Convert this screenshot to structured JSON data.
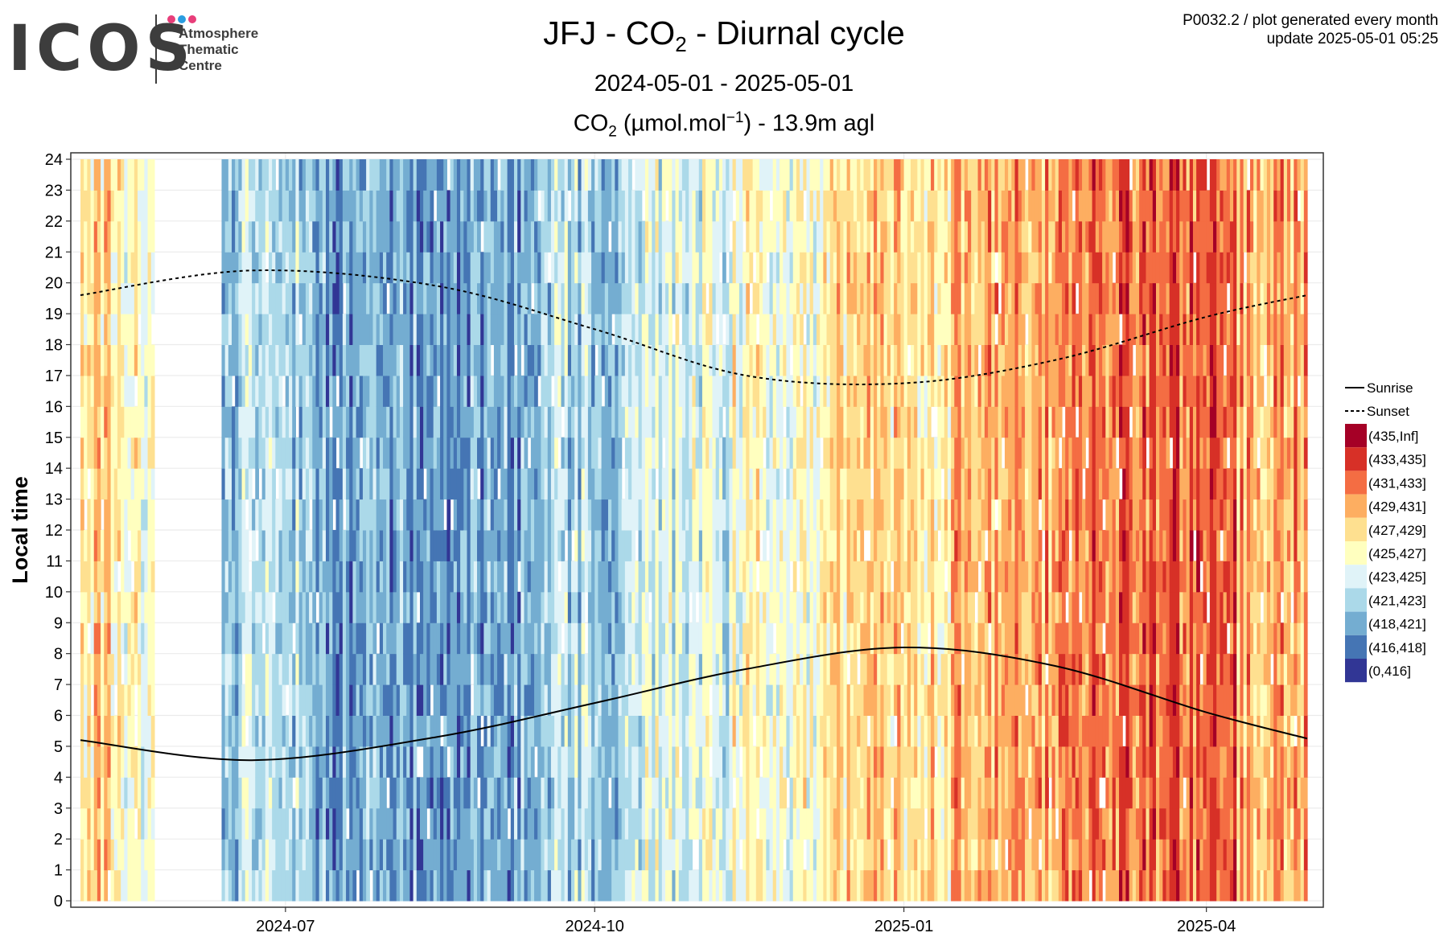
{
  "logo": {
    "word": "ICOS",
    "lines": [
      "Atmosphere",
      "Thematic",
      "Centre"
    ],
    "dot_colors": [
      "#e83e7a",
      "#2a9de0",
      "#e83e7a"
    ]
  },
  "header": {
    "title_parts": [
      "JFJ - CO",
      "2",
      " - Diurnal cycle"
    ],
    "period": "2024-05-01 - 2025-05-01",
    "variable_parts": [
      "CO",
      "2",
      " (µmol.mol",
      "−1",
      ") - 13.9m agl"
    ]
  },
  "info": {
    "line1": "P0032.2 / plot generated every month",
    "line2": "update  2025-05-01 05:25"
  },
  "chart_data": {
    "type": "heatmap",
    "ylabel": "Local time",
    "x_range": [
      "2024-05-01",
      "2025-05-01"
    ],
    "y_range": [
      0,
      24
    ],
    "x_ticks": [
      {
        "date": "2024-07-01",
        "label": "2024-07"
      },
      {
        "date": "2024-10-01",
        "label": "2024-10"
      },
      {
        "date": "2025-01-01",
        "label": "2025-01"
      },
      {
        "date": "2025-04-01",
        "label": "2025-04"
      }
    ],
    "y_ticks": [
      0,
      1,
      2,
      3,
      4,
      5,
      6,
      7,
      8,
      9,
      10,
      11,
      12,
      13,
      14,
      15,
      16,
      17,
      18,
      19,
      20,
      21,
      22,
      23,
      24
    ],
    "grid": true,
    "legend_position": "right",
    "bins": [
      {
        "label": "(435,Inf]",
        "color": "#a50026"
      },
      {
        "label": "(433,435]",
        "color": "#d73027"
      },
      {
        "label": "(431,433]",
        "color": "#f46d43"
      },
      {
        "label": "(429,431]",
        "color": "#fdae61"
      },
      {
        "label": "(427,429]",
        "color": "#fee090"
      },
      {
        "label": "(425,427]",
        "color": "#ffffbf"
      },
      {
        "label": "(423,425]",
        "color": "#e0f3f8"
      },
      {
        "label": "(421,423]",
        "color": "#abd9e9"
      },
      {
        "label": "(418,421]",
        "color": "#74add1"
      },
      {
        "label": "(416,418]",
        "color": "#4575b4"
      },
      {
        "label": "(0,416]",
        "color": "#313695"
      }
    ],
    "missing_periods": [
      {
        "from": "2024-05-23",
        "to": "2024-06-12"
      }
    ],
    "daily_bin_profile": [
      {
        "from": "2024-05-01",
        "to": "2024-05-10",
        "dominant": "(427,429]"
      },
      {
        "from": "2024-05-10",
        "to": "2024-05-23",
        "dominant": "(425,427]"
      },
      {
        "from": "2024-06-12",
        "to": "2024-07-10",
        "dominant": "(421,423]"
      },
      {
        "from": "2024-07-10",
        "to": "2024-09-15",
        "dominant": "(418,421]"
      },
      {
        "from": "2024-09-15",
        "to": "2024-10-15",
        "dominant": "(421,423]"
      },
      {
        "from": "2024-10-15",
        "to": "2024-11-10",
        "dominant": "(423,425]"
      },
      {
        "from": "2024-11-10",
        "to": "2024-12-10",
        "dominant": "(425,427]"
      },
      {
        "from": "2024-12-10",
        "to": "2025-01-15",
        "dominant": "(427,429]"
      },
      {
        "from": "2025-01-15",
        "to": "2025-02-20",
        "dominant": "(429,431]"
      },
      {
        "from": "2025-02-20",
        "to": "2025-04-10",
        "dominant": "(431,433]"
      },
      {
        "from": "2025-04-10",
        "to": "2025-05-01",
        "dominant": "(429,431]"
      }
    ],
    "series": [
      {
        "name": "Sunrise",
        "line": "solid",
        "x": [
          "2024-05-01",
          "2024-06-21",
          "2024-08-15",
          "2024-10-01",
          "2024-11-15",
          "2025-01-01",
          "2025-02-15",
          "2025-04-01",
          "2025-05-01"
        ],
        "y": [
          5.2,
          4.55,
          5.3,
          6.4,
          7.5,
          8.2,
          7.6,
          6.1,
          5.25
        ]
      },
      {
        "name": "Sunset",
        "line": "dashed",
        "x": [
          "2024-05-01",
          "2024-06-21",
          "2024-08-15",
          "2024-10-01",
          "2024-11-15",
          "2025-01-01",
          "2025-02-15",
          "2025-04-01",
          "2025-05-01"
        ],
        "y": [
          19.6,
          20.4,
          19.9,
          18.5,
          17.0,
          16.75,
          17.5,
          18.9,
          19.6
        ]
      }
    ]
  }
}
